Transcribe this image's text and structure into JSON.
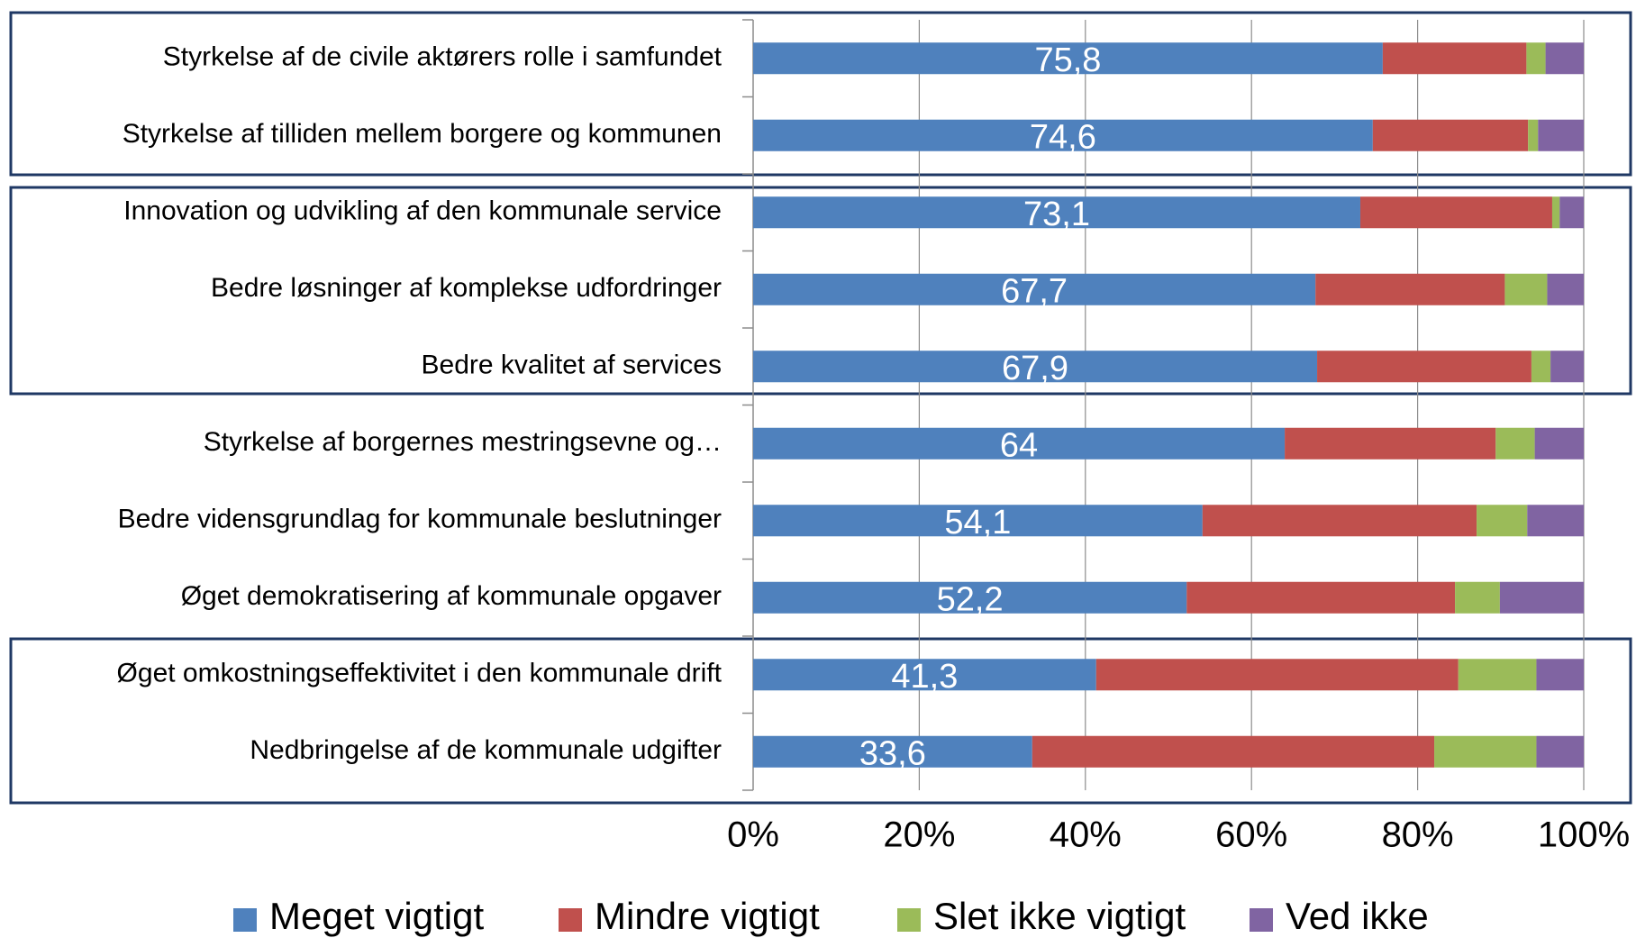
{
  "chart_data": {
    "type": "stacked_bar_horizontal",
    "categories": [
      "Styrkelse af de civile aktørers rolle i samfundet",
      "Styrkelse af tilliden mellem borgere og kommunen",
      "Innovation og udvikling af den kommunale service",
      "Bedre løsninger af komplekse udfordringer",
      "Bedre kvalitet af services",
      "Styrkelse af borgernes mestringsevne og…",
      "Bedre vidensgrundlag for kommunale beslutninger",
      "Øget demokratisering af kommunale opgaver",
      "Øget omkostningseffektivitet i den kommunale drift",
      "Nedbringelse af de kommunale udgifter"
    ],
    "series": [
      {
        "name": "Meget vigtigt",
        "color": "#4f81bd",
        "values": [
          75.8,
          74.6,
          73.1,
          67.7,
          67.9,
          64,
          54.1,
          52.2,
          41.3,
          33.6
        ],
        "value_labels": [
          "75,8",
          "74,6",
          "73,1",
          "67,7",
          "67,9",
          "64",
          "54,1",
          "52,2",
          "41,3",
          "33,6"
        ]
      },
      {
        "name": "Mindre vigtigt",
        "color": "#c0504d",
        "values": [
          17.3,
          18.7,
          23.1,
          22.8,
          25.8,
          25.4,
          33.0,
          32.3,
          43.6,
          48.4
        ]
      },
      {
        "name": "Slet ikke vigtigt",
        "color": "#9bbb59",
        "values": [
          2.3,
          1.2,
          0.9,
          5.1,
          2.3,
          4.7,
          6.1,
          5.4,
          9.4,
          12.3
        ]
      },
      {
        "name": "Ved ikke",
        "color": "#8064a2",
        "values": [
          4.6,
          5.5,
          2.9,
          4.4,
          4.0,
          5.9,
          6.8,
          10.1,
          5.7,
          5.7
        ]
      }
    ],
    "xlim": [
      0,
      100
    ],
    "xticks": [
      {
        "value": 0,
        "label": "0%"
      },
      {
        "value": 20,
        "label": "20%"
      },
      {
        "value": 40,
        "label": "40%"
      },
      {
        "value": 60,
        "label": "60%"
      },
      {
        "value": 80,
        "label": "80%"
      },
      {
        "value": 100,
        "label": "100%"
      }
    ],
    "grid": true,
    "legend": "bottom"
  }
}
